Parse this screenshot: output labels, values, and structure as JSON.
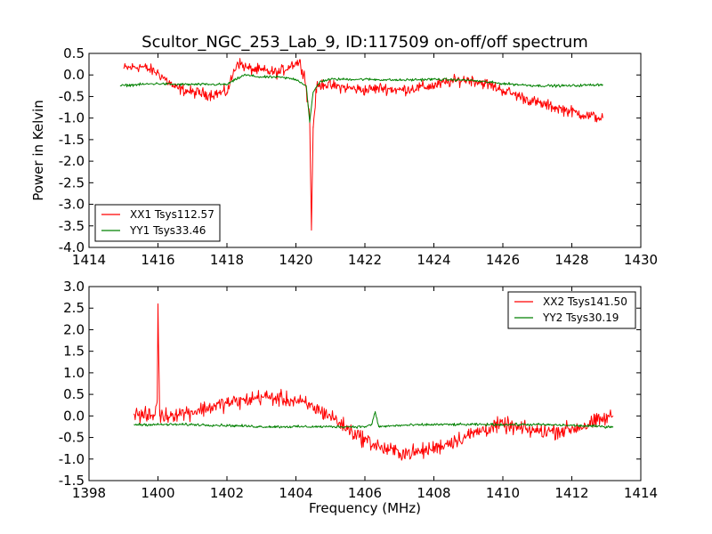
{
  "chart_data": [
    {
      "type": "line",
      "title": "Scultor_NGC_253_Lab_9, ID:117509 on-off/off spectrum",
      "xlabel": "",
      "ylabel": "Power in Kelvin",
      "xlim": [
        1414,
        1430
      ],
      "ylim": [
        -4.0,
        0.5
      ],
      "xticks": [
        "1414",
        "1416",
        "1418",
        "1420",
        "1422",
        "1424",
        "1426",
        "1428",
        "1430"
      ],
      "yticks": [
        "0.5",
        "0.0",
        "-0.5",
        "-1.0",
        "-1.5",
        "-2.0",
        "-2.5",
        "-3.0",
        "-3.5",
        "-4.0"
      ],
      "legend_position": "lower-left",
      "series": [
        {
          "name": "XX1 Tsys112.57",
          "color": "#ff0000",
          "x": [
            1415.0,
            1415.5,
            1416.0,
            1416.5,
            1417.0,
            1417.5,
            1418.0,
            1418.3,
            1418.6,
            1419.0,
            1419.5,
            1419.9,
            1420.1,
            1420.25,
            1420.4,
            1420.45,
            1420.5,
            1420.6,
            1420.8,
            1421.0,
            1421.5,
            1422.0,
            1422.5,
            1423.0,
            1423.5,
            1424.0,
            1424.5,
            1425.0,
            1425.5,
            1426.0,
            1426.5,
            1427.0,
            1427.5,
            1428.0,
            1428.5,
            1428.9
          ],
          "y": [
            0.15,
            0.2,
            0.05,
            -0.3,
            -0.4,
            -0.45,
            -0.4,
            0.3,
            0.15,
            0.1,
            0.05,
            0.25,
            0.3,
            0.0,
            -1.0,
            -3.6,
            -1.2,
            -0.3,
            -0.2,
            -0.25,
            -0.3,
            -0.35,
            -0.3,
            -0.35,
            -0.3,
            -0.25,
            -0.15,
            -0.1,
            -0.2,
            -0.35,
            -0.5,
            -0.65,
            -0.75,
            -0.85,
            -0.95,
            -1.0
          ]
        },
        {
          "name": "YY1 Tsys33.46",
          "color": "#008000",
          "x": [
            1414.9,
            1415.5,
            1416.0,
            1416.5,
            1417.0,
            1417.5,
            1418.0,
            1418.5,
            1419.0,
            1419.5,
            1420.0,
            1420.3,
            1420.4,
            1420.5,
            1420.7,
            1421.0,
            1421.5,
            1422.0,
            1423.0,
            1424.0,
            1425.0,
            1426.0,
            1427.0,
            1428.0,
            1428.9
          ],
          "y": [
            -0.25,
            -0.22,
            -0.2,
            -0.22,
            -0.22,
            -0.22,
            -0.22,
            0.0,
            -0.05,
            -0.05,
            -0.1,
            -0.25,
            -1.1,
            -0.4,
            -0.15,
            -0.1,
            -0.1,
            -0.1,
            -0.12,
            -0.1,
            -0.12,
            -0.2,
            -0.25,
            -0.25,
            -0.22
          ]
        }
      ]
    },
    {
      "type": "line",
      "title": "",
      "xlabel": "Frequency (MHz)",
      "ylabel": "",
      "xlim": [
        1398,
        1414
      ],
      "ylim": [
        -1.5,
        3.0
      ],
      "xticks": [
        "1398",
        "1400",
        "1402",
        "1404",
        "1406",
        "1408",
        "1410",
        "1412",
        "1414"
      ],
      "yticks": [
        "3.0",
        "2.5",
        "2.0",
        "1.5",
        "1.0",
        "0.5",
        "0.0",
        "-0.5",
        "-1.0",
        "-1.5"
      ],
      "legend_position": "upper-right",
      "series": [
        {
          "name": "XX2 Tsys141.50",
          "color": "#ff0000",
          "x": [
            1399.3,
            1399.6,
            1399.9,
            1399.98,
            1400.0,
            1400.05,
            1400.2,
            1400.5,
            1401.0,
            1401.5,
            1402.0,
            1402.5,
            1403.0,
            1403.5,
            1404.0,
            1404.5,
            1405.0,
            1405.5,
            1406.0,
            1406.5,
            1407.0,
            1407.5,
            1408.0,
            1408.5,
            1409.0,
            1409.5,
            1410.0,
            1410.5,
            1411.0,
            1411.5,
            1412.0,
            1412.5,
            1413.0,
            1413.2
          ],
          "y": [
            0.05,
            0.0,
            0.0,
            0.4,
            2.6,
            0.0,
            0.0,
            0.05,
            0.1,
            0.2,
            0.3,
            0.35,
            0.45,
            0.4,
            0.35,
            0.2,
            0.0,
            -0.3,
            -0.55,
            -0.75,
            -0.85,
            -0.85,
            -0.75,
            -0.6,
            -0.45,
            -0.3,
            -0.2,
            -0.3,
            -0.35,
            -0.35,
            -0.3,
            -0.2,
            -0.05,
            0.0
          ]
        },
        {
          "name": "YY2 Tsys30.19",
          "color": "#008000",
          "x": [
            1399.3,
            1400.0,
            1401.0,
            1402.0,
            1403.0,
            1404.0,
            1405.0,
            1406.0,
            1406.2,
            1406.3,
            1406.4,
            1407.0,
            1408.0,
            1409.0,
            1410.0,
            1411.0,
            1412.0,
            1413.0,
            1413.2
          ],
          "y": [
            -0.2,
            -0.2,
            -0.2,
            -0.22,
            -0.25,
            -0.25,
            -0.25,
            -0.25,
            -0.2,
            0.1,
            -0.25,
            -0.22,
            -0.2,
            -0.2,
            -0.2,
            -0.2,
            -0.22,
            -0.25,
            -0.25
          ]
        }
      ]
    }
  ]
}
